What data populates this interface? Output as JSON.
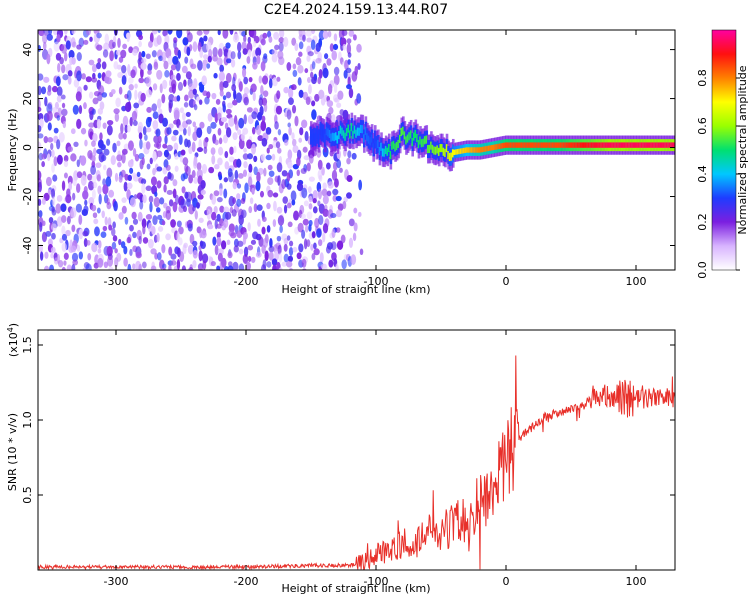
{
  "title": "C2E4.2024.159.13.44.R07",
  "chart_data": [
    {
      "type": "heatmap",
      "xlabel": "Height of straight line (km)",
      "ylabel": "Frequency (Hz)",
      "xlim": [
        -360,
        130
      ],
      "ylim": [
        -50,
        48
      ],
      "xticks": [
        -300,
        -200,
        -100,
        0,
        100
      ],
      "xtick_labels": [
        "-300",
        "-200",
        "-100",
        "0",
        "100"
      ],
      "yticks": [
        -40,
        -20,
        0,
        20,
        40
      ],
      "ytick_labels": [
        "-40",
        "-20",
        "0",
        "20",
        "40"
      ],
      "colorbar": {
        "label": "Normalized spectral amplitude",
        "range": [
          0.0,
          1.0
        ],
        "ticks": [
          0.0,
          0.2,
          0.4,
          0.6,
          0.8
        ],
        "tick_labels": [
          "0.0",
          "0.2",
          "0.4",
          "0.6",
          "0.8"
        ],
        "colormap": [
          "#ffffff",
          "#d8b4ff",
          "#7b1fe0",
          "#1e3cff",
          "#00c8ff",
          "#00e070",
          "#9aff00",
          "#ffff00",
          "#ff8000",
          "#ff1010",
          "#ff00a0"
        ]
      },
      "noise_region": {
        "x": [
          -360,
          -112
        ],
        "freq": [
          -50,
          48
        ],
        "amplitude": "0.05-0.3"
      },
      "signal_trace": [
        {
          "x": -150,
          "freq": 5,
          "amplitude": 0.3
        },
        {
          "x": -140,
          "freq": 6,
          "amplitude": 0.3
        },
        {
          "x": -130,
          "freq": 5,
          "amplitude": 0.4
        },
        {
          "x": -120,
          "freq": 7,
          "amplitude": 0.5
        },
        {
          "x": -110,
          "freq": 6,
          "amplitude": 0.35
        },
        {
          "x": -100,
          "freq": 1,
          "amplitude": 0.3
        },
        {
          "x": -90,
          "freq": -2,
          "amplitude": 0.5
        },
        {
          "x": -80,
          "freq": 5,
          "amplitude": 0.55
        },
        {
          "x": -70,
          "freq": 4,
          "amplitude": 0.5
        },
        {
          "x": -60,
          "freq": 1,
          "amplitude": 0.55
        },
        {
          "x": -50,
          "freq": -2,
          "amplitude": 0.6
        },
        {
          "x": -40,
          "freq": -2,
          "amplitude": 0.7
        },
        {
          "x": -30,
          "freq": -1,
          "amplitude": 0.75
        },
        {
          "x": -20,
          "freq": -1,
          "amplitude": 0.8
        },
        {
          "x": -10,
          "freq": 0,
          "amplitude": 0.8
        },
        {
          "x": 0,
          "freq": 1,
          "amplitude": 0.85
        },
        {
          "x": 20,
          "freq": 1,
          "amplitude": 0.85
        },
        {
          "x": 40,
          "freq": 1,
          "amplitude": 0.85
        },
        {
          "x": 60,
          "freq": 1,
          "amplitude": 0.9
        },
        {
          "x": 80,
          "freq": 1,
          "amplitude": 0.95
        },
        {
          "x": 100,
          "freq": 1,
          "amplitude": 0.95
        },
        {
          "x": 130,
          "freq": 1,
          "amplitude": 0.95
        }
      ]
    },
    {
      "type": "line",
      "xlabel": "Height of straight line (km)",
      "ylabel": "SNR (10 * v/v)",
      "y_multiplier_label": "(x10",
      "y_multiplier_exponent": "4",
      "y_multiplier_close": ")",
      "xlim": [
        -360,
        130
      ],
      "ylim": [
        0,
        1.6
      ],
      "xticks": [
        -300,
        -200,
        -100,
        0,
        100
      ],
      "xtick_labels": [
        "-300",
        "-200",
        "-100",
        "0",
        "100"
      ],
      "yticks": [
        0.5,
        1.0,
        1.5
      ],
      "ytick_labels": [
        "0.5",
        "1.0",
        "1.5"
      ],
      "series": [
        {
          "color": "#e8302a",
          "x": [
            -360,
            -300,
            -250,
            -200,
            -150,
            -120,
            -110,
            -100,
            -90,
            -80,
            -70,
            -60,
            -50,
            -40,
            -30,
            -20,
            -10,
            0,
            10,
            20,
            30,
            40,
            50,
            60,
            70,
            80,
            90,
            100,
            110,
            120,
            130
          ],
          "y": [
            0.02,
            0.02,
            0.02,
            0.02,
            0.03,
            0.03,
            0.05,
            0.1,
            0.13,
            0.18,
            0.17,
            0.25,
            0.25,
            0.3,
            0.35,
            0.45,
            0.55,
            0.75,
            0.88,
            0.95,
            1.02,
            1.05,
            1.07,
            1.1,
            1.18,
            1.14,
            1.12,
            1.16,
            1.15,
            1.15,
            1.13
          ]
        }
      ]
    }
  ]
}
